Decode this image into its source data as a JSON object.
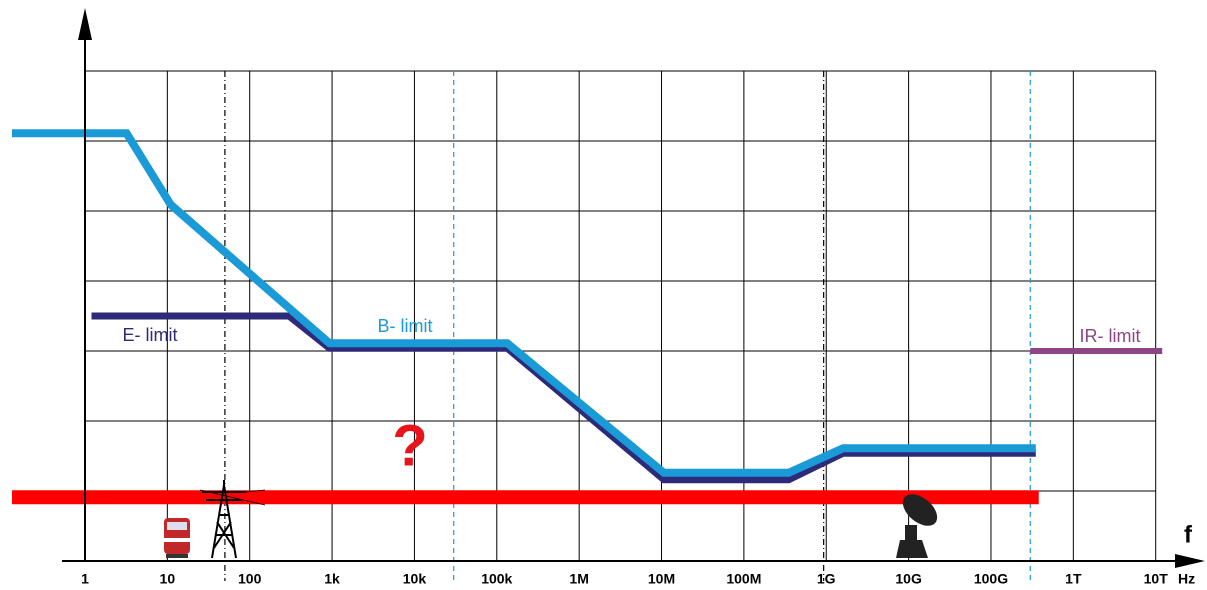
{
  "chart_data": {
    "type": "line",
    "xlog": true,
    "grid": true,
    "x_unit": "Hz",
    "x_axis_label": "f",
    "annotation": "?",
    "xlim": [
      0.13,
      30000000000000
    ],
    "ylim": [
      0,
      7.9
    ],
    "yticks": [
      1,
      2,
      3,
      4,
      5,
      6,
      7
    ],
    "xticks": [
      1,
      10,
      100,
      {
        "value": 1000,
        "label": "1k"
      },
      {
        "value": 10000,
        "label": "10k"
      },
      {
        "value": 100000,
        "label": "100k"
      },
      {
        "value": 1000000,
        "label": "1M"
      },
      {
        "value": 10000000,
        "label": "10M"
      },
      {
        "value": 100000000,
        "label": "100M"
      },
      {
        "value": 1000000000,
        "label": "1G"
      },
      {
        "value": 10000000000,
        "label": "10G"
      },
      {
        "value": 100000000000,
        "label": "100G"
      },
      {
        "value": 1000000000000,
        "label": "1T"
      },
      {
        "value": 10000000000000,
        "label": "10T"
      }
    ],
    "series": [
      {
        "name": "E- limit",
        "color": "#2e2a7a",
        "width": 7,
        "x": [
          1.2,
          300,
          930,
          134000,
          10700000,
          350000000,
          1600000000,
          350000000000
        ],
        "values": [
          3.5,
          3.5,
          3.04,
          3.04,
          1.16,
          1.16,
          1.54,
          1.54
        ]
      },
      {
        "name": "B- limit",
        "color": "#1a9ad6",
        "width": 8,
        "x": [
          0.13,
          3.2,
          11,
          930,
          134000,
          10700000,
          350000000,
          1600000000,
          350000000000
        ],
        "values": [
          6.11,
          6.11,
          5.09,
          3.11,
          3.11,
          1.26,
          1.26,
          1.61,
          1.61
        ]
      },
      {
        "name": "IR- limit",
        "color": "#8e4585",
        "width": 6,
        "x": [
          300000000000,
          12000000000000
        ],
        "values": [
          3.0,
          3.0
        ]
      },
      {
        "color": "#ff0000",
        "width": 14,
        "x": [
          0.13,
          380000000000
        ],
        "values": [
          0.91,
          0.91
        ]
      }
    ],
    "reference_lines": [
      {
        "x": 50,
        "color": "#000000",
        "dash": "6 3 1 3"
      },
      {
        "x": 30000,
        "color": "#1a9ad6",
        "dash": "5 4"
      },
      {
        "x": 930000000,
        "color": "#000000",
        "dash": "6 3 1 3"
      },
      {
        "x": 300000000000,
        "color": "#1a9ad6",
        "dash": "5 4"
      }
    ]
  }
}
